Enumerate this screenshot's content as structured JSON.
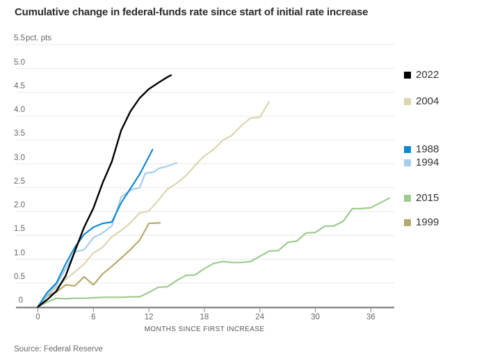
{
  "header": {
    "title": "Cumulative change in federal-funds rate since start of initial rate increase"
  },
  "footer": {
    "source": "Source: Federal Reserve"
  },
  "chart_data": {
    "type": "line",
    "title": "Cumulative change in federal-funds rate since start of initial rate increase",
    "xlabel": "MONTHS SINCE FIRST INCREASE",
    "ylabel": "pct. pts",
    "unit_label": "pct. pts",
    "xlim": [
      0,
      38.6
    ],
    "ylim": [
      0,
      5.5
    ],
    "x_ticks": [
      0,
      6,
      12,
      18,
      24,
      30,
      36
    ],
    "y_ticks": [
      0,
      0.5,
      1.0,
      1.5,
      2.0,
      2.5,
      3.0,
      3.5,
      4.0,
      4.5,
      5.0,
      5.5
    ],
    "grid": true,
    "legend_position": "right, each entry aligned to its line endpoint",
    "colors": {
      "grid": "#e9e9e9",
      "axis": "#8c8c8c",
      "text": "#666666"
    },
    "series": [
      {
        "name": "2022",
        "color": "#000000",
        "points": [
          [
            0,
            0
          ],
          [
            1,
            0.15
          ],
          [
            2,
            0.33
          ],
          [
            3,
            0.65
          ],
          [
            4,
            1.17
          ],
          [
            5,
            1.67
          ],
          [
            6,
            2.07
          ],
          [
            7,
            2.6
          ],
          [
            8,
            3.05
          ],
          [
            9,
            3.7
          ],
          [
            10,
            4.1
          ],
          [
            11,
            4.38
          ],
          [
            12,
            4.57
          ],
          [
            13,
            4.7
          ],
          [
            14,
            4.82
          ],
          [
            14.4,
            4.86
          ]
        ]
      },
      {
        "name": "2004",
        "color": "#dcd5b0",
        "points": [
          [
            0,
            0
          ],
          [
            1,
            0.23
          ],
          [
            2,
            0.4
          ],
          [
            3,
            0.58
          ],
          [
            4,
            0.73
          ],
          [
            5,
            0.9
          ],
          [
            6,
            1.13
          ],
          [
            7,
            1.25
          ],
          [
            8,
            1.47
          ],
          [
            9,
            1.6
          ],
          [
            10,
            1.76
          ],
          [
            11,
            1.97
          ],
          [
            12,
            2.01
          ],
          [
            13,
            2.23
          ],
          [
            14,
            2.47
          ],
          [
            15,
            2.59
          ],
          [
            16,
            2.75
          ],
          [
            17,
            2.97
          ],
          [
            18,
            3.17
          ],
          [
            19,
            3.3
          ],
          [
            20,
            3.5
          ],
          [
            21,
            3.6
          ],
          [
            22,
            3.8
          ],
          [
            23,
            3.96
          ],
          [
            24,
            3.98
          ],
          [
            25,
            4.3
          ]
        ]
      },
      {
        "name": "1988",
        "color": "#1189d2",
        "points": [
          [
            0,
            0
          ],
          [
            1,
            0.3
          ],
          [
            2,
            0.5
          ],
          [
            3,
            0.9
          ],
          [
            4,
            1.25
          ],
          [
            5,
            1.52
          ],
          [
            6,
            1.67
          ],
          [
            7,
            1.75
          ],
          [
            8,
            1.78
          ],
          [
            9,
            2.18
          ],
          [
            10,
            2.48
          ],
          [
            11,
            2.78
          ],
          [
            12,
            3.15
          ],
          [
            12.4,
            3.3
          ]
        ]
      },
      {
        "name": "1994",
        "color": "#a6cdec",
        "points": [
          [
            0,
            0
          ],
          [
            1,
            0.25
          ],
          [
            2,
            0.45
          ],
          [
            3,
            0.8
          ],
          [
            4,
            1.15
          ],
          [
            5,
            1.2
          ],
          [
            6,
            1.45
          ],
          [
            7,
            1.55
          ],
          [
            8,
            1.7
          ],
          [
            9,
            2.3
          ],
          [
            10,
            2.45
          ],
          [
            11,
            2.5
          ],
          [
            11.6,
            2.8
          ],
          [
            12.6,
            2.83
          ],
          [
            13,
            2.9
          ],
          [
            14,
            2.95
          ],
          [
            15,
            3.02
          ]
        ]
      },
      {
        "name": "2015",
        "color": "#9dcb8e",
        "points": [
          [
            0,
            0
          ],
          [
            1,
            0.1
          ],
          [
            2,
            0.18
          ],
          [
            3,
            0.17
          ],
          [
            4,
            0.18
          ],
          [
            5,
            0.18
          ],
          [
            6,
            0.19
          ],
          [
            7,
            0.2
          ],
          [
            8,
            0.2
          ],
          [
            9,
            0.2
          ],
          [
            10,
            0.21
          ],
          [
            11,
            0.21
          ],
          [
            12,
            0.3
          ],
          [
            13,
            0.41
          ],
          [
            14,
            0.42
          ],
          [
            15,
            0.55
          ],
          [
            16,
            0.66
          ],
          [
            17,
            0.67
          ],
          [
            18,
            0.8
          ],
          [
            19,
            0.91
          ],
          [
            20,
            0.95
          ],
          [
            21,
            0.93
          ],
          [
            22,
            0.93
          ],
          [
            23,
            0.95
          ],
          [
            24,
            1.06
          ],
          [
            25,
            1.17
          ],
          [
            26,
            1.18
          ],
          [
            27,
            1.35
          ],
          [
            28,
            1.38
          ],
          [
            29,
            1.55
          ],
          [
            30,
            1.56
          ],
          [
            31,
            1.69
          ],
          [
            32,
            1.7
          ],
          [
            33,
            1.79
          ],
          [
            34,
            2.06
          ],
          [
            35,
            2.06
          ],
          [
            36,
            2.08
          ],
          [
            37,
            2.18
          ],
          [
            38,
            2.28
          ]
        ]
      },
      {
        "name": "1999",
        "color": "#b5aa6d",
        "points": [
          [
            0,
            0
          ],
          [
            1,
            0.23
          ],
          [
            2,
            0.31
          ],
          [
            3,
            0.46
          ],
          [
            4,
            0.44
          ],
          [
            5,
            0.63
          ],
          [
            6,
            0.46
          ],
          [
            7,
            0.69
          ],
          [
            8,
            0.85
          ],
          [
            9,
            1.02
          ],
          [
            10,
            1.2
          ],
          [
            11,
            1.4
          ],
          [
            12,
            1.75
          ],
          [
            13.2,
            1.76
          ]
        ]
      }
    ]
  }
}
